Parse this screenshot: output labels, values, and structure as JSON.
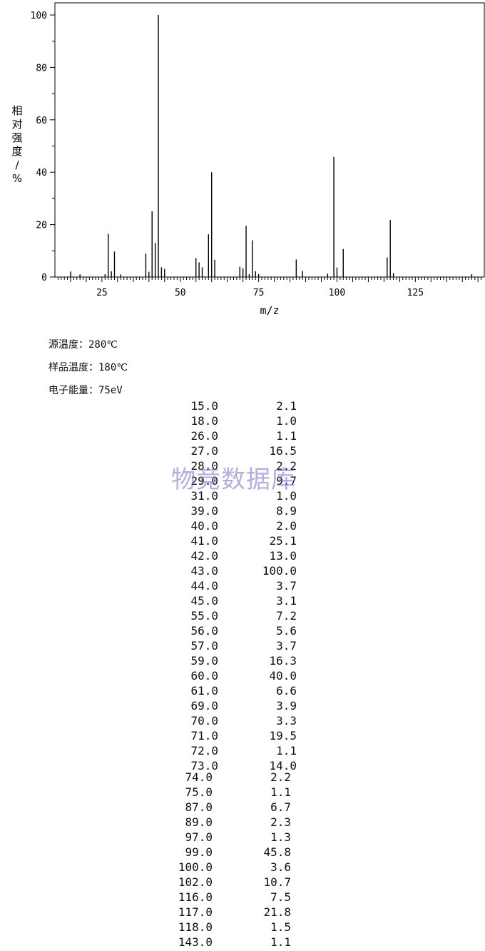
{
  "chart_data": {
    "type": "bar",
    "title": "",
    "xlabel": "m/z",
    "ylabel": "相对强度/%",
    "xlim": [
      10,
      147
    ],
    "ylim": [
      0,
      100
    ],
    "x_ticks": [
      25,
      50,
      75,
      100,
      125
    ],
    "y_ticks": [
      0,
      20,
      40,
      60,
      80,
      100
    ],
    "grid": false,
    "peaks": [
      {
        "mz": 15.0,
        "intensity": 2.1
      },
      {
        "mz": 18.0,
        "intensity": 1.0
      },
      {
        "mz": 26.0,
        "intensity": 1.1
      },
      {
        "mz": 27.0,
        "intensity": 16.5
      },
      {
        "mz": 28.0,
        "intensity": 2.2
      },
      {
        "mz": 29.0,
        "intensity": 9.7
      },
      {
        "mz": 31.0,
        "intensity": 1.0
      },
      {
        "mz": 39.0,
        "intensity": 8.9
      },
      {
        "mz": 40.0,
        "intensity": 2.0
      },
      {
        "mz": 41.0,
        "intensity": 25.1
      },
      {
        "mz": 42.0,
        "intensity": 13.0
      },
      {
        "mz": 43.0,
        "intensity": 100.0
      },
      {
        "mz": 44.0,
        "intensity": 3.7
      },
      {
        "mz": 45.0,
        "intensity": 3.1
      },
      {
        "mz": 55.0,
        "intensity": 7.2
      },
      {
        "mz": 56.0,
        "intensity": 5.6
      },
      {
        "mz": 57.0,
        "intensity": 3.7
      },
      {
        "mz": 59.0,
        "intensity": 16.3
      },
      {
        "mz": 60.0,
        "intensity": 40.0
      },
      {
        "mz": 61.0,
        "intensity": 6.6
      },
      {
        "mz": 69.0,
        "intensity": 3.9
      },
      {
        "mz": 70.0,
        "intensity": 3.3
      },
      {
        "mz": 71.0,
        "intensity": 19.5
      },
      {
        "mz": 72.0,
        "intensity": 1.1
      },
      {
        "mz": 73.0,
        "intensity": 14.0
      },
      {
        "mz": 74.0,
        "intensity": 2.2
      },
      {
        "mz": 75.0,
        "intensity": 1.1
      },
      {
        "mz": 87.0,
        "intensity": 6.7
      },
      {
        "mz": 89.0,
        "intensity": 2.3
      },
      {
        "mz": 97.0,
        "intensity": 1.3
      },
      {
        "mz": 99.0,
        "intensity": 45.8
      },
      {
        "mz": 100.0,
        "intensity": 3.6
      },
      {
        "mz": 102.0,
        "intensity": 10.7
      },
      {
        "mz": 116.0,
        "intensity": 7.5
      },
      {
        "mz": 117.0,
        "intensity": 21.8
      },
      {
        "mz": 118.0,
        "intensity": 1.5
      },
      {
        "mz": 143.0,
        "intensity": 1.1
      }
    ]
  },
  "conditions": {
    "source_temp_label": "源温度：",
    "source_temp_value": "280℃",
    "sample_temp_label": "样品温度：",
    "sample_temp_value": "180℃",
    "electron_energy_label": "电子能量：",
    "electron_energy_value": "75eV"
  },
  "peak_table": [
    [
      "15.0",
      "2.1"
    ],
    [
      "18.0",
      "1.0"
    ],
    [
      "26.0",
      "1.1"
    ],
    [
      "27.0",
      "16.5"
    ],
    [
      "28.0",
      "2.2"
    ],
    [
      "29.0",
      "9.7"
    ],
    [
      "31.0",
      "1.0"
    ],
    [
      "39.0",
      "8.9"
    ],
    [
      "40.0",
      "2.0"
    ],
    [
      "41.0",
      "25.1"
    ],
    [
      "42.0",
      "13.0"
    ],
    [
      "43.0",
      "100.0"
    ],
    [
      "44.0",
      "3.7"
    ],
    [
      "45.0",
      "3.1"
    ],
    [
      "55.0",
      "7.2"
    ],
    [
      "56.0",
      "5.6"
    ],
    [
      "57.0",
      "3.7"
    ],
    [
      "59.0",
      "16.3"
    ],
    [
      "60.0",
      "40.0"
    ],
    [
      "61.0",
      "6.6"
    ],
    [
      "69.0",
      "3.9"
    ],
    [
      "70.0",
      "3.3"
    ],
    [
      "71.0",
      "19.5"
    ],
    [
      "72.0",
      "1.1"
    ],
    [
      "73.0",
      "14.0"
    ],
    [
      "74.0",
      "2.2"
    ],
    [
      "75.0",
      "1.1"
    ],
    [
      "87.0",
      "6.7"
    ],
    [
      "89.0",
      "2.3"
    ],
    [
      "97.0",
      "1.3"
    ],
    [
      "99.0",
      "45.8"
    ],
    [
      "100.0",
      "3.6"
    ],
    [
      "102.0",
      "10.7"
    ],
    [
      "116.0",
      "7.5"
    ],
    [
      "117.0",
      "21.8"
    ],
    [
      "118.0",
      "1.5"
    ],
    [
      "143.0",
      "1.1"
    ]
  ],
  "watermark": "物竞数据库"
}
